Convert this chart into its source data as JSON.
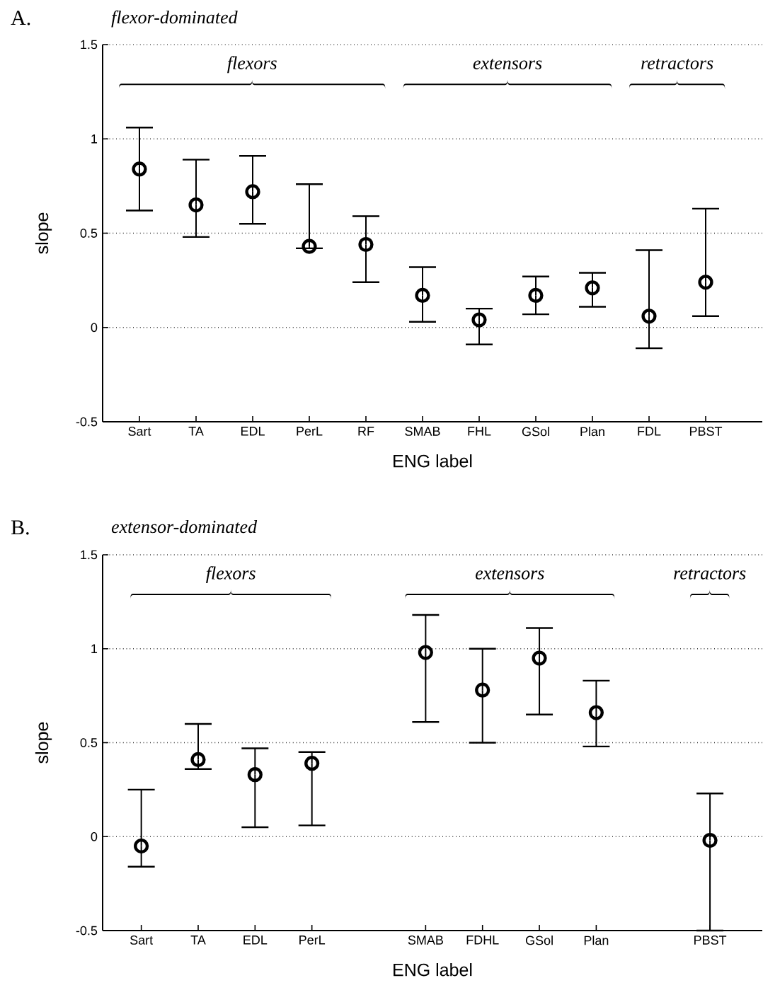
{
  "chart_data": [
    {
      "type": "scatter",
      "title": "flexor-dominated",
      "xlabel": "ENG label",
      "ylabel": "slope",
      "color": "#000000",
      "marker": "circle",
      "grid": "y",
      "categories": [
        "Sart",
        "TA",
        "EDL",
        "PerL",
        "RF",
        "SMAB",
        "FHL",
        "GSol",
        "Plan",
        "FDL",
        "PBST"
      ],
      "values": [
        0.84,
        0.65,
        0.72,
        0.43,
        0.44,
        0.17,
        0.04,
        0.17,
        0.21,
        0.06,
        0.24
      ],
      "errors": [
        [
          0.62,
          1.06
        ],
        [
          0.48,
          0.89
        ],
        [
          0.55,
          0.91
        ],
        [
          0.42,
          0.76
        ],
        [
          0.24,
          0.59
        ],
        [
          0.03,
          0.32
        ],
        [
          -0.09,
          0.1
        ],
        [
          0.07,
          0.27
        ],
        [
          0.11,
          0.29
        ],
        [
          -0.11,
          0.41
        ],
        [
          0.06,
          0.63
        ]
      ],
      "ylim": [
        -0.5,
        1.5
      ],
      "yticks": [
        -0.5,
        0,
        0.5,
        1,
        1.5
      ],
      "annotations": [
        "A.",
        "flexors",
        "extensors",
        "retractors"
      ]
    },
    {
      "type": "scatter",
      "title": "extensor-dominated",
      "xlabel": "ENG label",
      "ylabel": "slope",
      "color": "#000000",
      "marker": "circle",
      "grid": "y",
      "categories": [
        "Sart",
        "TA",
        "EDL",
        "PerL",
        null,
        "SMAB",
        "FDHL",
        "GSol",
        "Plan",
        null,
        "PBST"
      ],
      "values": [
        -0.05,
        0.41,
        0.33,
        0.39,
        null,
        0.98,
        0.78,
        0.95,
        0.66,
        null,
        -0.02
      ],
      "errors": [
        [
          -0.16,
          0.25
        ],
        [
          0.36,
          0.6
        ],
        [
          0.05,
          0.47
        ],
        [
          0.06,
          0.45
        ],
        null,
        [
          0.61,
          1.18
        ],
        [
          0.5,
          1.0
        ],
        [
          0.65,
          1.11
        ],
        [
          0.48,
          0.83
        ],
        null,
        [
          -0.5,
          0.23
        ]
      ],
      "ylim": [
        -0.5,
        1.5
      ],
      "yticks": [
        -0.5,
        0,
        0.5,
        1,
        1.5
      ],
      "annotations": [
        "B.",
        "flexors",
        "extensors",
        "retractors"
      ]
    }
  ]
}
